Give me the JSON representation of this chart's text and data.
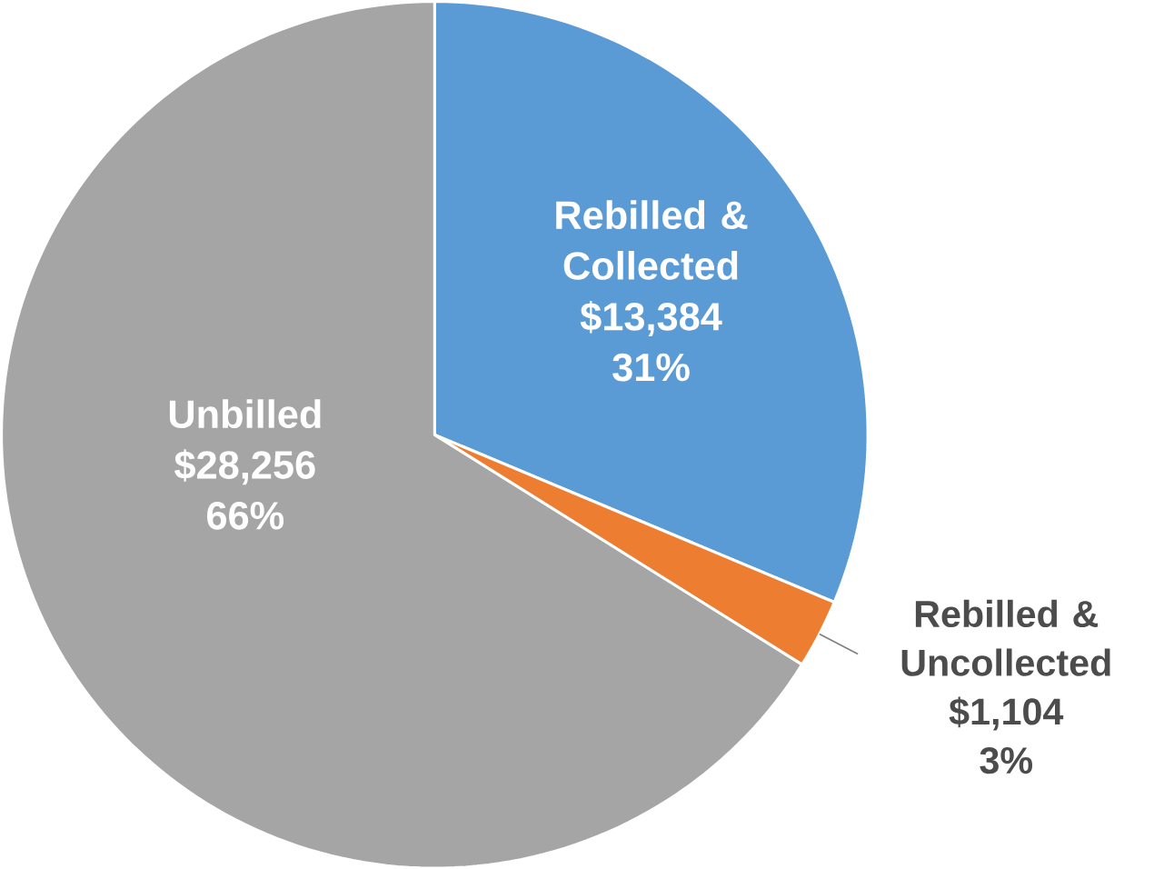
{
  "chart_data": {
    "type": "pie",
    "categories": [
      "Rebilled & Collected",
      "Rebilled & Uncollected",
      "Unbilled"
    ],
    "values": [
      13384,
      1104,
      28256
    ],
    "colors": [
      "#5b9bd5",
      "#ed7d31",
      "#a5a5a5"
    ],
    "value_labels": [
      "$13,384",
      "$1,104",
      "$28,256"
    ],
    "annotations": [
      "31%",
      "3%",
      "66%"
    ]
  }
}
